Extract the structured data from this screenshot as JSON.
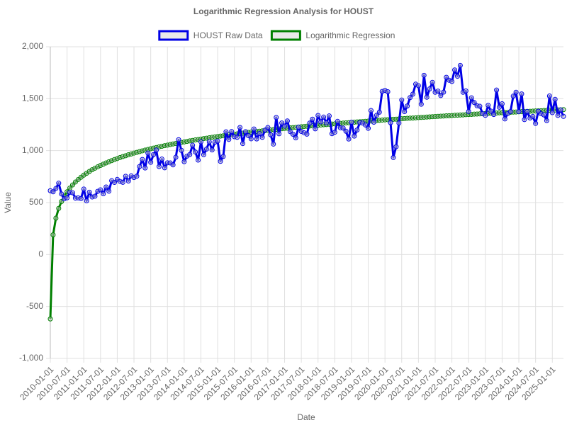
{
  "chart_data": {
    "type": "line",
    "title": "Logarithmic Regression Analysis for HOUST",
    "x_label": "Date",
    "y_label": "Value",
    "legend": "top",
    "grid": true,
    "ylim": [
      -1000,
      2000
    ],
    "yticks": [
      {
        "value": -1000,
        "label": "-1,000"
      },
      -500,
      0,
      500,
      {
        "value": 1000,
        "label": "1,000"
      },
      {
        "value": 1500,
        "label": "1,500"
      },
      {
        "value": 2000,
        "label": "2,000"
      }
    ],
    "categories": [
      "2010-01-01",
      null,
      null,
      null,
      null,
      null,
      "2010-07-01",
      null,
      null,
      null,
      null,
      null,
      "2011-01-01",
      null,
      null,
      null,
      null,
      null,
      "2011-07-01",
      null,
      null,
      null,
      null,
      null,
      "2012-01-01",
      null,
      null,
      null,
      null,
      null,
      "2012-07-01",
      null,
      null,
      null,
      null,
      null,
      "2013-01-01",
      null,
      null,
      null,
      null,
      null,
      "2013-07-01",
      null,
      null,
      null,
      null,
      null,
      "2014-01-01",
      null,
      null,
      null,
      null,
      null,
      "2014-07-01",
      null,
      null,
      null,
      null,
      null,
      "2015-01-01",
      null,
      null,
      null,
      null,
      null,
      "2015-07-01",
      null,
      null,
      null,
      null,
      null,
      "2016-01-01",
      null,
      null,
      null,
      null,
      null,
      "2016-07-01",
      null,
      null,
      null,
      null,
      null,
      "2017-01-01",
      null,
      null,
      null,
      null,
      null,
      "2017-07-01",
      null,
      null,
      null,
      null,
      null,
      "2018-01-01",
      null,
      null,
      null,
      null,
      null,
      "2018-07-01",
      null,
      null,
      null,
      null,
      null,
      "2019-01-01",
      null,
      null,
      null,
      null,
      null,
      "2019-07-01",
      null,
      null,
      null,
      null,
      null,
      "2020-01-01",
      null,
      null,
      null,
      null,
      null,
      "2020-07-01",
      null,
      null,
      null,
      null,
      null,
      "2021-01-01",
      null,
      null,
      null,
      null,
      null,
      "2021-07-01",
      null,
      null,
      null,
      null,
      null,
      "2022-01-01",
      null,
      null,
      null,
      null,
      null,
      "2022-07-01",
      null,
      null,
      null,
      null,
      null,
      "2023-01-01",
      null,
      null,
      null,
      null,
      null,
      "2023-07-01",
      null,
      null,
      null,
      null,
      null,
      "2024-01-01",
      null,
      null,
      null,
      null,
      null,
      "2024-07-01",
      null,
      null,
      null,
      null,
      null,
      "2025-01-01",
      null,
      null,
      null,
      null
    ],
    "series": [
      {
        "name": "HOUST Raw Data",
        "color": "#0000e6",
        "values": [
          614,
          604,
          636,
          687,
          583,
          536,
          546,
          599,
          594,
          543,
          545,
          539,
          630,
          517,
          600,
          554,
          561,
          608,
          623,
          585,
          650,
          610,
          711,
          694,
          723,
          704,
          695,
          753,
          708,
          757,
          741,
          754,
          847,
          915,
          833,
          976,
          888,
          962,
          1005,
          847,
          919,
          835,
          883,
          882,
          863,
          936,
          1105,
          1003,
          894,
          947,
          963,
          1052,
          987,
          909,
          1085,
          961,
          1015,
          1084,
          1007,
          1080,
          1092,
          897,
          944,
          1181,
          1108,
          1184,
          1134,
          1128,
          1223,
          1068,
          1183,
          1144,
          1114,
          1208,
          1113,
          1165,
          1128,
          1198,
          1223,
          1153,
          1063,
          1319,
          1162,
          1266,
          1236,
          1286,
          1183,
          1158,
          1123,
          1225,
          1185,
          1172,
          1159,
          1265,
          1303,
          1210,
          1339,
          1277,
          1323,
          1268,
          1334,
          1163,
          1177,
          1282,
          1220,
          1217,
          1187,
          1112,
          1273,
          1140,
          1199,
          1270,
          1265,
          1247,
          1215,
          1386,
          1274,
          1340,
          1370,
          1570,
          1580,
          1567,
          1269,
          934,
          1038,
          1265,
          1487,
          1376,
          1430,
          1511,
          1544,
          1640,
          1625,
          1447,
          1725,
          1514,
          1594,
          1657,
          1562,
          1573,
          1530,
          1563,
          1706,
          1678,
          1666,
          1777,
          1716,
          1820,
          1562,
          1575,
          1377,
          1508,
          1463,
          1432,
          1427,
          1357,
          1340,
          1436,
          1380,
          1348,
          1583,
          1418,
          1451,
          1305,
          1356,
          1376,
          1525,
          1562,
          1376,
          1546,
          1299,
          1377,
          1315,
          1329,
          1262,
          1379,
          1355,
          1344,
          1289,
          1526,
          1366,
          1494,
          1339,
          1392,
          1330
        ]
      },
      {
        "name": "Logarithmic Regression",
        "color": "#008000",
        "values": [
          -620,
          190,
          350,
          444,
          510,
          562,
          604,
          640,
          670,
          698,
          722,
          744,
          764,
          782,
          800,
          816,
          831,
          844,
          858,
          870,
          882,
          893,
          904,
          914,
          924,
          934,
          943,
          951,
          960,
          968,
          976,
          983,
          991,
          998,
          1005,
          1011,
          1018,
          1024,
          1030,
          1036,
          1042,
          1048,
          1053,
          1059,
          1064,
          1069,
          1074,
          1079,
          1084,
          1089,
          1094,
          1098,
          1103,
          1107,
          1111,
          1116,
          1120,
          1124,
          1128,
          1132,
          1136,
          1140,
          1143,
          1147,
          1151,
          1154,
          1158,
          1161,
          1165,
          1168,
          1171,
          1175,
          1178,
          1181,
          1184,
          1187,
          1190,
          1193,
          1196,
          1199,
          1202,
          1205,
          1208,
          1211,
          1214,
          1216,
          1219,
          1222,
          1224,
          1227,
          1230,
          1232,
          1235,
          1237,
          1239,
          1242,
          1244,
          1247,
          1249,
          1251,
          1254,
          1256,
          1258,
          1261,
          1263,
          1265,
          1267,
          1269,
          1272,
          1274,
          1276,
          1278,
          1280,
          1282,
          1284,
          1286,
          1288,
          1290,
          1292,
          1294,
          1296,
          1298,
          1300,
          1302,
          1303,
          1305,
          1307,
          1309,
          1311,
          1313,
          1314,
          1316,
          1318,
          1320,
          1321,
          1323,
          1325,
          1327,
          1328,
          1330,
          1332,
          1333,
          1335,
          1336,
          1338,
          1340,
          1341,
          1343,
          1344,
          1346,
          1348,
          1349,
          1351,
          1352,
          1354,
          1355,
          1357,
          1358,
          1360,
          1361,
          1362,
          1364,
          1365,
          1367,
          1368,
          1369,
          1371,
          1372,
          1374,
          1375,
          1376,
          1378,
          1379,
          1380,
          1382,
          1383,
          1384,
          1386,
          1387,
          1388,
          1390,
          1391,
          1392,
          1393,
          1395
        ]
      }
    ]
  }
}
